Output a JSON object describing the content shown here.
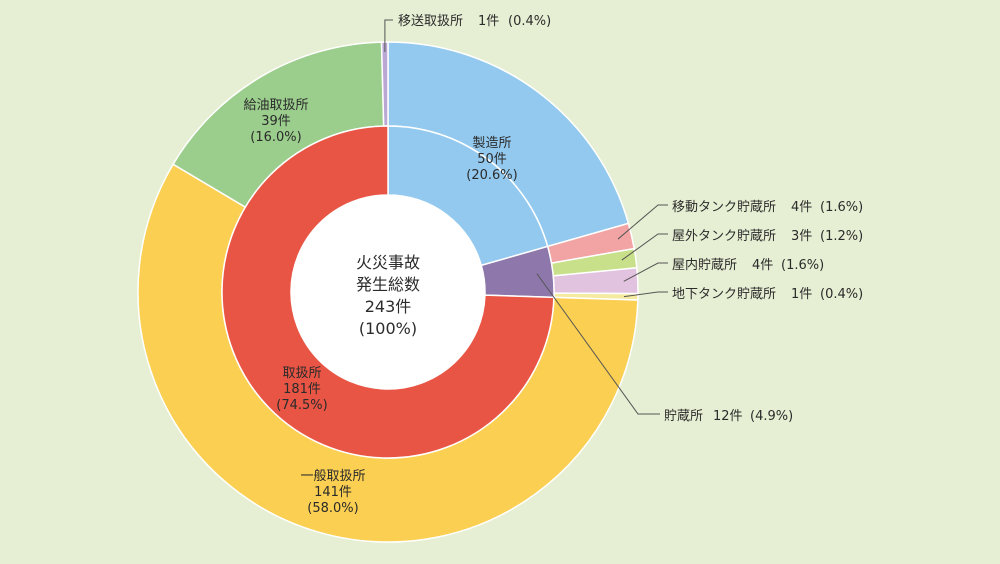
{
  "chart_data": {
    "type": "pie",
    "center": {
      "lines": [
        "火災事故",
        "発生総数",
        "243件",
        "(100%)"
      ]
    },
    "inner_ring": [
      {
        "name": "取扱所",
        "count": "181件",
        "pct": "(74.5%)",
        "value": 181,
        "color": "#e85544"
      },
      {
        "name": "貯蔵所",
        "count": "12件",
        "pct": "(4.9%)",
        "value": 12,
        "color": "#8e77aa"
      },
      {
        "name": "製造所",
        "count": "50件",
        "pct": "(20.6%)",
        "value": 50,
        "color": "#93c9ee"
      }
    ],
    "outer_ring": [
      {
        "name": "製造所",
        "count": "50件",
        "pct": "(20.6%)",
        "value": 50,
        "color": "#93c9ee"
      },
      {
        "name": "移動タンク貯蔵所",
        "count": "4件",
        "pct": "(1.6%)",
        "value": 4,
        "color": "#f2a4a4"
      },
      {
        "name": "屋外タンク貯蔵所",
        "count": "3件",
        "pct": "(1.2%)",
        "value": 3,
        "color": "#c8e08a"
      },
      {
        "name": "屋内貯蔵所",
        "count": "4件",
        "pct": "(1.6%)",
        "value": 4,
        "color": "#e2c3df"
      },
      {
        "name": "地下タンク貯蔵所",
        "count": "1件",
        "pct": "(0.4%)",
        "value": 1,
        "color": "#f4eaa0"
      },
      {
        "name": "一般取扱所",
        "count": "141件",
        "pct": "(58.0%)",
        "value": 141,
        "color": "#fbcf51"
      },
      {
        "name": "給油取扱所",
        "count": "39件",
        "pct": "(16.0%)",
        "value": 39,
        "color": "#9bcd8c"
      },
      {
        "name": "移送取扱所",
        "count": "1件",
        "pct": "(0.4%)",
        "value": 1,
        "color": "#b9a8d3"
      }
    ]
  }
}
